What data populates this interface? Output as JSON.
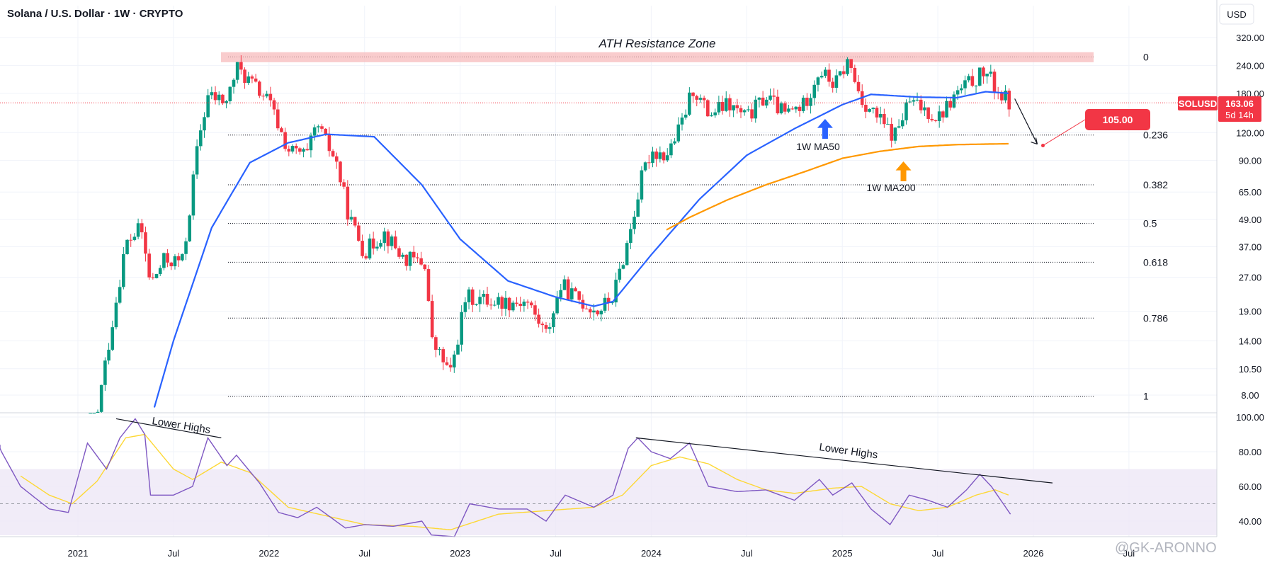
{
  "header": {
    "title": "Solana / U.S. Dollar · 1W · CRYPTO",
    "currency_button": "USD"
  },
  "price_axis": {
    "ticks": [
      "320.00",
      "240.00",
      "180.00",
      "120.00",
      "90.00",
      "65.00",
      "49.00",
      "37.00",
      "27.00",
      "19.00",
      "14.00",
      "10.50",
      "8.00"
    ],
    "scale": "log"
  },
  "rsi_axis": {
    "ticks": [
      "100.00",
      "80.00",
      "60.00",
      "40.00"
    ]
  },
  "time_axis": {
    "ticks": [
      "2021",
      "Jul",
      "2022",
      "Jul",
      "2023",
      "Jul",
      "2024",
      "Jul",
      "2025",
      "Jul",
      "2026",
      "Jul"
    ]
  },
  "annotations": {
    "ath_zone": "ATH Resistance Zone",
    "ma50": "1W MA50",
    "ma200": "1W MA200",
    "lower_highs_left": "Lower Highs",
    "lower_highs_right": "Lower Highs",
    "target": "105.00"
  },
  "price_badge": {
    "symbol": "SOLUSD",
    "price": "163.06",
    "countdown": "5d 14h"
  },
  "fib_levels": [
    {
      "label": "0",
      "price": 262
    },
    {
      "label": "0.236",
      "price": 117
    },
    {
      "label": "0.382",
      "price": 70
    },
    {
      "label": "0.5",
      "price": 47
    },
    {
      "label": "0.618",
      "price": 31.5
    },
    {
      "label": "0.786",
      "price": 17.7
    },
    {
      "label": "1",
      "price": 7.9
    }
  ],
  "watermark": "@GK-ARONNO",
  "colors": {
    "up": "#089981",
    "down": "#f23645",
    "ma50": "#2962ff",
    "ma200": "#ff9800",
    "rsi": "#7e57c2",
    "rsi_ma": "#fdd835",
    "rsi_band": "#ede7f6",
    "ath_zone": "#f7b6b8",
    "price_line": "#f23645"
  },
  "chart_data": {
    "type": "candlestick",
    "interval": "1W",
    "y_scale": "log",
    "price_keypoints": [
      {
        "t": 2020.95,
        "p": 2.0
      },
      {
        "t": 2021.05,
        "p": 3.5
      },
      {
        "t": 2021.15,
        "p": 12
      },
      {
        "t": 2021.25,
        "p": 38
      },
      {
        "t": 2021.33,
        "p": 45
      },
      {
        "t": 2021.38,
        "p": 25
      },
      {
        "t": 2021.45,
        "p": 32
      },
      {
        "t": 2021.55,
        "p": 32
      },
      {
        "t": 2021.63,
        "p": 110
      },
      {
        "t": 2021.68,
        "p": 175
      },
      {
        "t": 2021.78,
        "p": 165
      },
      {
        "t": 2021.83,
        "p": 235
      },
      {
        "t": 2021.92,
        "p": 195
      },
      {
        "t": 2022.0,
        "p": 165
      },
      {
        "t": 2022.1,
        "p": 100
      },
      {
        "t": 2022.2,
        "p": 95
      },
      {
        "t": 2022.25,
        "p": 130
      },
      {
        "t": 2022.35,
        "p": 90
      },
      {
        "t": 2022.42,
        "p": 50
      },
      {
        "t": 2022.5,
        "p": 35
      },
      {
        "t": 2022.6,
        "p": 43
      },
      {
        "t": 2022.7,
        "p": 33
      },
      {
        "t": 2022.82,
        "p": 31
      },
      {
        "t": 2022.85,
        "p": 14
      },
      {
        "t": 2022.95,
        "p": 10
      },
      {
        "t": 2023.03,
        "p": 22
      },
      {
        "t": 2023.2,
        "p": 21
      },
      {
        "t": 2023.35,
        "p": 21
      },
      {
        "t": 2023.45,
        "p": 15
      },
      {
        "t": 2023.53,
        "p": 25
      },
      {
        "t": 2023.6,
        "p": 22
      },
      {
        "t": 2023.72,
        "p": 19
      },
      {
        "t": 2023.8,
        "p": 22
      },
      {
        "t": 2023.88,
        "p": 40
      },
      {
        "t": 2023.95,
        "p": 75
      },
      {
        "t": 2024.0,
        "p": 100
      },
      {
        "t": 2024.08,
        "p": 95
      },
      {
        "t": 2024.15,
        "p": 125
      },
      {
        "t": 2024.22,
        "p": 190
      },
      {
        "t": 2024.3,
        "p": 145
      },
      {
        "t": 2024.4,
        "p": 160
      },
      {
        "t": 2024.5,
        "p": 140
      },
      {
        "t": 2024.6,
        "p": 175
      },
      {
        "t": 2024.7,
        "p": 145
      },
      {
        "t": 2024.8,
        "p": 160
      },
      {
        "t": 2024.88,
        "p": 230
      },
      {
        "t": 2024.96,
        "p": 195
      },
      {
        "t": 2025.03,
        "p": 250
      },
      {
        "t": 2025.1,
        "p": 170
      },
      {
        "t": 2025.2,
        "p": 135
      },
      {
        "t": 2025.27,
        "p": 115
      },
      {
        "t": 2025.35,
        "p": 165
      },
      {
        "t": 2025.45,
        "p": 150
      },
      {
        "t": 2025.5,
        "p": 140
      },
      {
        "t": 2025.6,
        "p": 180
      },
      {
        "t": 2025.68,
        "p": 205
      },
      {
        "t": 2025.75,
        "p": 225
      },
      {
        "t": 2025.82,
        "p": 180
      },
      {
        "t": 2025.88,
        "p": 163
      }
    ],
    "ma50_keypoints": [
      {
        "t": 2021.35,
        "p": 5
      },
      {
        "t": 2021.5,
        "p": 14
      },
      {
        "t": 2021.7,
        "p": 45
      },
      {
        "t": 2021.9,
        "p": 88
      },
      {
        "t": 2022.1,
        "p": 108
      },
      {
        "t": 2022.3,
        "p": 118
      },
      {
        "t": 2022.55,
        "p": 115
      },
      {
        "t": 2022.8,
        "p": 70
      },
      {
        "t": 2023.0,
        "p": 40
      },
      {
        "t": 2023.25,
        "p": 26
      },
      {
        "t": 2023.5,
        "p": 22
      },
      {
        "t": 2023.7,
        "p": 20
      },
      {
        "t": 2023.8,
        "p": 21
      },
      {
        "t": 2024.0,
        "p": 34
      },
      {
        "t": 2024.25,
        "p": 60
      },
      {
        "t": 2024.5,
        "p": 95
      },
      {
        "t": 2024.75,
        "p": 125
      },
      {
        "t": 2025.0,
        "p": 160
      },
      {
        "t": 2025.15,
        "p": 178
      },
      {
        "t": 2025.4,
        "p": 173
      },
      {
        "t": 2025.6,
        "p": 172
      },
      {
        "t": 2025.75,
        "p": 183
      },
      {
        "t": 2025.87,
        "p": 180
      }
    ],
    "ma200_keypoints": [
      {
        "t": 2024.08,
        "p": 44
      },
      {
        "t": 2024.2,
        "p": 50
      },
      {
        "t": 2024.4,
        "p": 60
      },
      {
        "t": 2024.6,
        "p": 70
      },
      {
        "t": 2024.8,
        "p": 80
      },
      {
        "t": 2025.0,
        "p": 92
      },
      {
        "t": 2025.2,
        "p": 99
      },
      {
        "t": 2025.4,
        "p": 104
      },
      {
        "t": 2025.6,
        "p": 106
      },
      {
        "t": 2025.87,
        "p": 107
      }
    ],
    "projection": {
      "from_t": 2025.88,
      "from_p": 163,
      "to_t": 2026.05,
      "to_p": 105
    },
    "rsi_keypoints": [
      {
        "t": 2020.58,
        "r": 84
      },
      {
        "t": 2020.7,
        "r": 60
      },
      {
        "t": 2020.85,
        "r": 47
      },
      {
        "t": 2020.95,
        "r": 45
      },
      {
        "t": 2021.05,
        "r": 85
      },
      {
        "t": 2021.15,
        "r": 70
      },
      {
        "t": 2021.22,
        "r": 88
      },
      {
        "t": 2021.3,
        "r": 99
      },
      {
        "t": 2021.35,
        "r": 90
      },
      {
        "t": 2021.38,
        "r": 55
      },
      {
        "t": 2021.5,
        "r": 55
      },
      {
        "t": 2021.6,
        "r": 60
      },
      {
        "t": 2021.68,
        "r": 88
      },
      {
        "t": 2021.78,
        "r": 72
      },
      {
        "t": 2021.83,
        "r": 78
      },
      {
        "t": 2021.95,
        "r": 62
      },
      {
        "t": 2022.05,
        "r": 45
      },
      {
        "t": 2022.15,
        "r": 42
      },
      {
        "t": 2022.25,
        "r": 48
      },
      {
        "t": 2022.4,
        "r": 36
      },
      {
        "t": 2022.5,
        "r": 38
      },
      {
        "t": 2022.65,
        "r": 37
      },
      {
        "t": 2022.8,
        "r": 40
      },
      {
        "t": 2022.85,
        "r": 32
      },
      {
        "t": 2022.97,
        "r": 31
      },
      {
        "t": 2023.05,
        "r": 50
      },
      {
        "t": 2023.2,
        "r": 47
      },
      {
        "t": 2023.35,
        "r": 47
      },
      {
        "t": 2023.45,
        "r": 40
      },
      {
        "t": 2023.55,
        "r": 55
      },
      {
        "t": 2023.7,
        "r": 48
      },
      {
        "t": 2023.8,
        "r": 55
      },
      {
        "t": 2023.88,
        "r": 82
      },
      {
        "t": 2023.93,
        "r": 88
      },
      {
        "t": 2024.0,
        "r": 80
      },
      {
        "t": 2024.1,
        "r": 76
      },
      {
        "t": 2024.2,
        "r": 85
      },
      {
        "t": 2024.3,
        "r": 60
      },
      {
        "t": 2024.45,
        "r": 57
      },
      {
        "t": 2024.6,
        "r": 58
      },
      {
        "t": 2024.75,
        "r": 52
      },
      {
        "t": 2024.88,
        "r": 64
      },
      {
        "t": 2024.95,
        "r": 55
      },
      {
        "t": 2025.05,
        "r": 62
      },
      {
        "t": 2025.15,
        "r": 47
      },
      {
        "t": 2025.25,
        "r": 38
      },
      {
        "t": 2025.35,
        "r": 55
      },
      {
        "t": 2025.45,
        "r": 52
      },
      {
        "t": 2025.55,
        "r": 48
      },
      {
        "t": 2025.65,
        "r": 58
      },
      {
        "t": 2025.72,
        "r": 67
      },
      {
        "t": 2025.78,
        "r": 60
      },
      {
        "t": 2025.88,
        "r": 44
      }
    ],
    "rsi_ma_keypoints": [
      {
        "t": 2020.7,
        "r": 66
      },
      {
        "t": 2020.85,
        "r": 55
      },
      {
        "t": 2020.97,
        "r": 50
      },
      {
        "t": 2021.1,
        "r": 63
      },
      {
        "t": 2021.25,
        "r": 88
      },
      {
        "t": 2021.35,
        "r": 90
      },
      {
        "t": 2021.5,
        "r": 70
      },
      {
        "t": 2021.6,
        "r": 64
      },
      {
        "t": 2021.75,
        "r": 74
      },
      {
        "t": 2021.9,
        "r": 68
      },
      {
        "t": 2022.1,
        "r": 48
      },
      {
        "t": 2022.3,
        "r": 43
      },
      {
        "t": 2022.5,
        "r": 38
      },
      {
        "t": 2022.75,
        "r": 37
      },
      {
        "t": 2022.95,
        "r": 35
      },
      {
        "t": 2023.2,
        "r": 44
      },
      {
        "t": 2023.45,
        "r": 46
      },
      {
        "t": 2023.7,
        "r": 48
      },
      {
        "t": 2023.85,
        "r": 55
      },
      {
        "t": 2024.0,
        "r": 72
      },
      {
        "t": 2024.15,
        "r": 77
      },
      {
        "t": 2024.3,
        "r": 73
      },
      {
        "t": 2024.45,
        "r": 64
      },
      {
        "t": 2024.6,
        "r": 58
      },
      {
        "t": 2024.75,
        "r": 56
      },
      {
        "t": 2024.95,
        "r": 59
      },
      {
        "t": 2025.1,
        "r": 60
      },
      {
        "t": 2025.25,
        "r": 50
      },
      {
        "t": 2025.4,
        "r": 46
      },
      {
        "t": 2025.55,
        "r": 48
      },
      {
        "t": 2025.7,
        "r": 55
      },
      {
        "t": 2025.8,
        "r": 58
      },
      {
        "t": 2025.87,
        "r": 55
      }
    ],
    "rsi_trendlines": [
      {
        "t1": 2021.2,
        "r1": 99,
        "t2": 2021.75,
        "r2": 88
      },
      {
        "t1": 2023.92,
        "r1": 88,
        "t2": 2026.1,
        "r2": 62
      }
    ]
  }
}
